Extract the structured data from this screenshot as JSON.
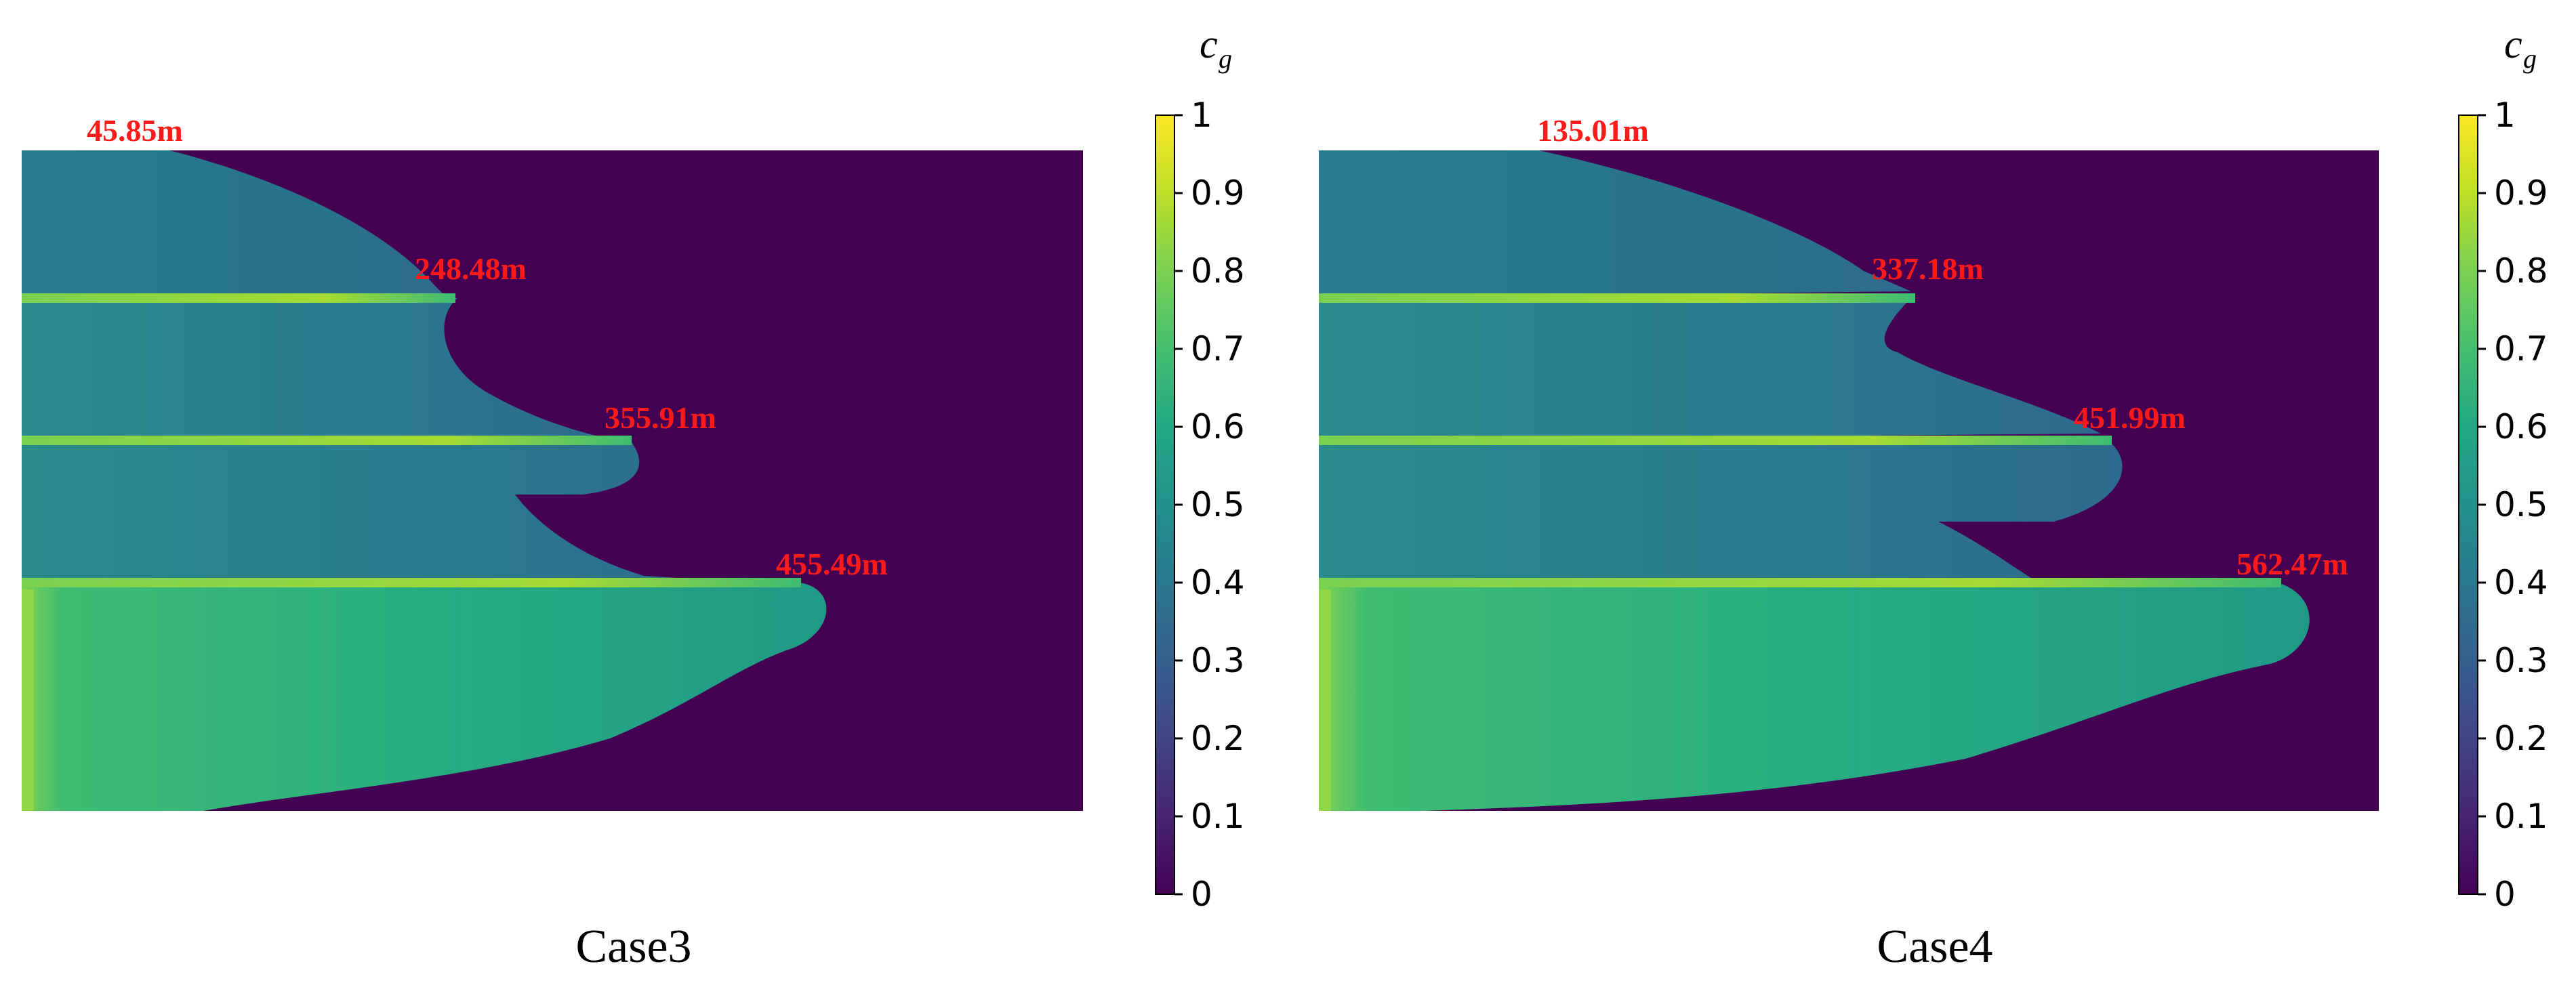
{
  "colorbar": {
    "title": "c",
    "title_sub": "g",
    "ticks": [
      "0",
      "0.1",
      "0.2",
      "0.3",
      "0.4",
      "0.5",
      "0.6",
      "0.7",
      "0.8",
      "0.9",
      "1"
    ],
    "range": [
      0,
      1
    ],
    "colormap": "viridis"
  },
  "colors": {
    "background_field": "#440154",
    "label_color": "#ff1a1a"
  },
  "chart_data": [
    {
      "type": "heatmap",
      "title": "Case3",
      "colorbar_range": [
        0,
        1
      ],
      "annotations": [
        "45.85m",
        "248.48m",
        "355.91m",
        "455.49m"
      ],
      "layers": [
        {
          "annotation": "45.85m",
          "front_length_m": 45.85
        },
        {
          "annotation": "248.48m",
          "front_length_m": 248.48
        },
        {
          "annotation": "355.91m",
          "front_length_m": 355.91
        },
        {
          "annotation": "455.49m",
          "front_length_m": 455.49
        }
      ]
    },
    {
      "type": "heatmap",
      "title": "Case4",
      "colorbar_range": [
        0,
        1
      ],
      "annotations": [
        "135.01m",
        "337.18m",
        "451.99m",
        "562.47m"
      ],
      "layers": [
        {
          "annotation": "135.01m",
          "front_length_m": 135.01
        },
        {
          "annotation": "337.18m",
          "front_length_m": 337.18
        },
        {
          "annotation": "451.99m",
          "front_length_m": 451.99
        },
        {
          "annotation": "562.47m",
          "front_length_m": 562.47
        }
      ]
    }
  ]
}
